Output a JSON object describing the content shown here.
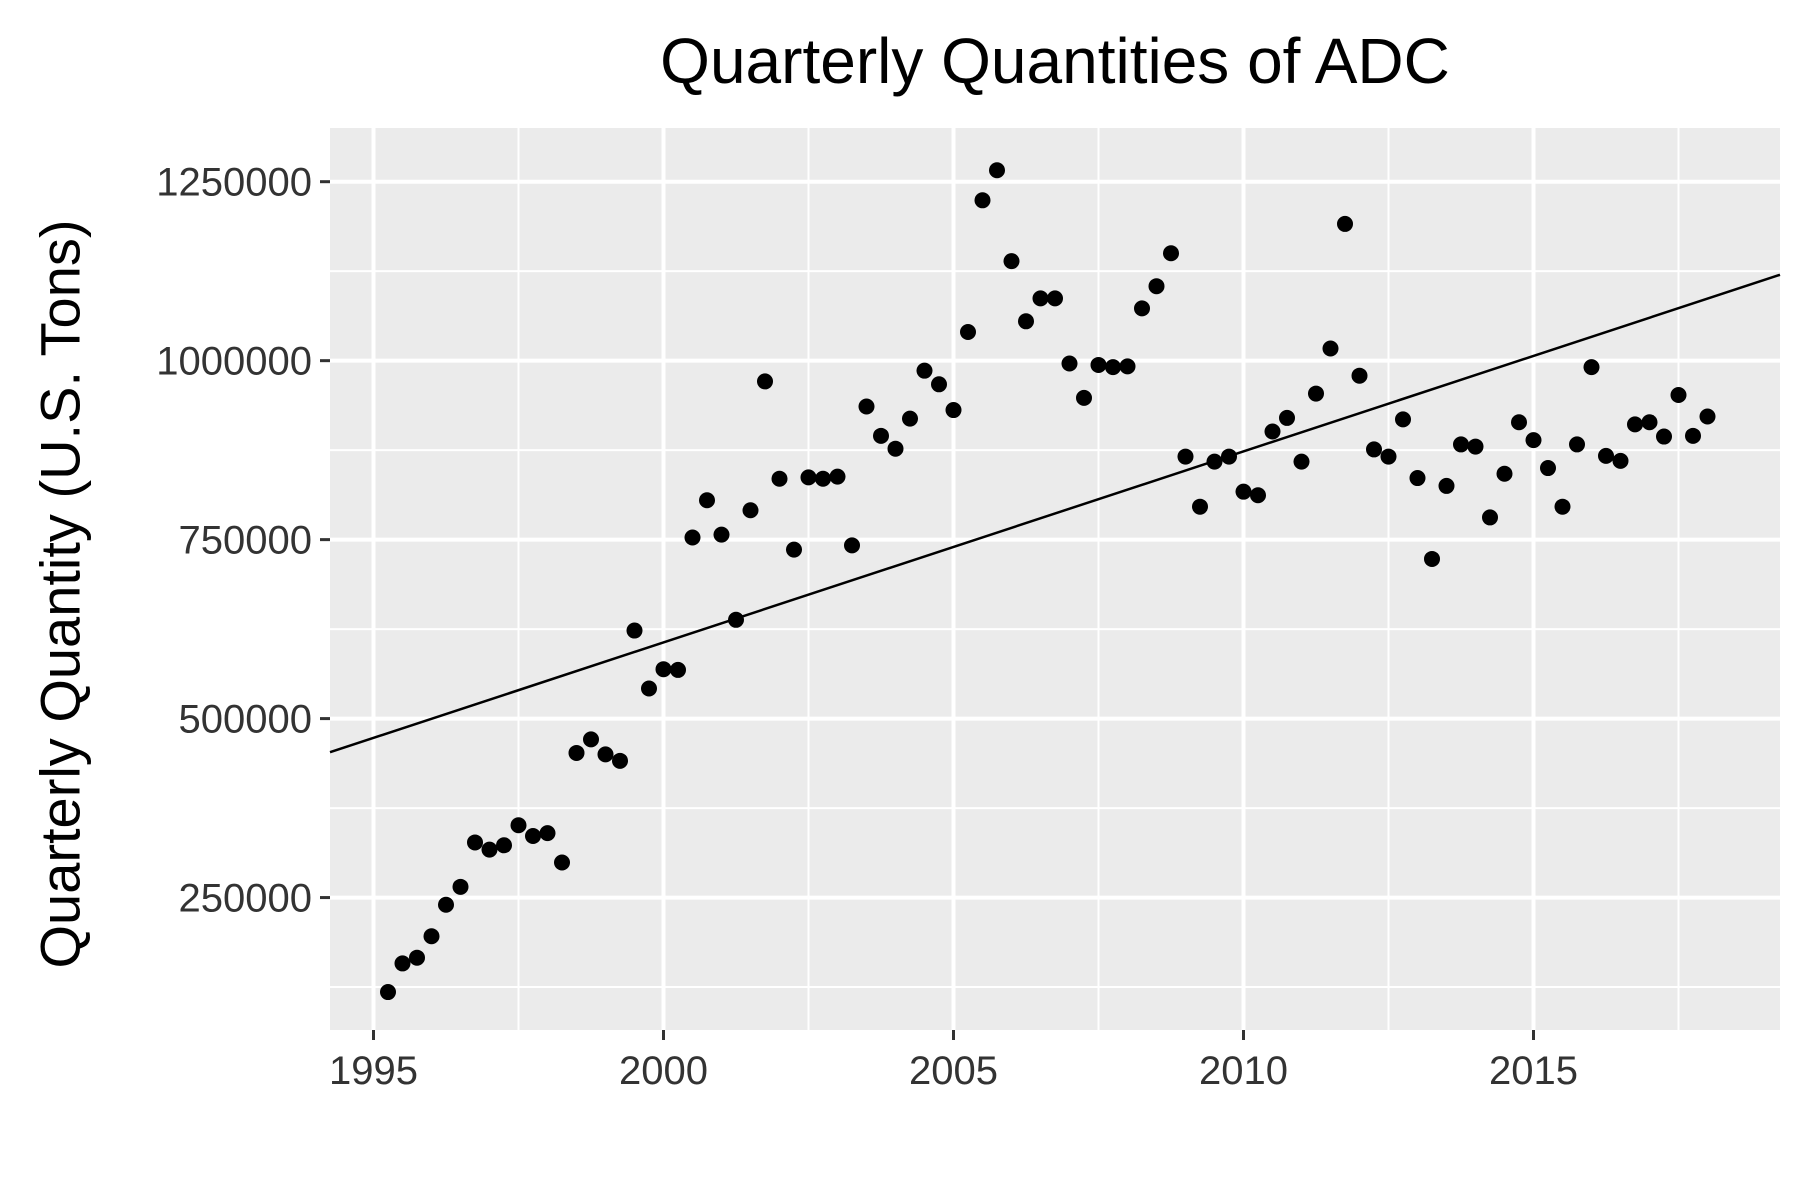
{
  "chart_data": {
    "type": "scatter",
    "title": "Quarterly Quantities of ADC",
    "xlabel": "",
    "ylabel": "Quarterly Quantity (U.S. Tons)",
    "xlim": [
      1994.25,
      2019.25
    ],
    "ylim": [
      65000,
      1325000
    ],
    "x_ticks": [
      1995,
      2000,
      2005,
      2010,
      2015
    ],
    "y_ticks": [
      250000,
      500000,
      750000,
      1000000,
      1250000
    ],
    "x_tick_labels": [
      "1995",
      "2000",
      "2005",
      "2010",
      "2015"
    ],
    "y_tick_labels": [
      "250000",
      "500000",
      "750000",
      "1000000",
      "1250000"
    ],
    "grid": true,
    "legend": "none",
    "background_color": "#ebebeb",
    "grid_color": "#ffffff",
    "point_color": "#000000",
    "trend_line": {
      "x": [
        1994.25,
        2019.25
      ],
      "y": [
        453000,
        1120000
      ]
    },
    "points": [
      [
        1995.25,
        118000
      ],
      [
        1995.5,
        158000
      ],
      [
        1995.75,
        166000
      ],
      [
        1996.0,
        196000
      ],
      [
        1996.25,
        240000
      ],
      [
        1996.5,
        265000
      ],
      [
        1996.75,
        327000
      ],
      [
        1997.0,
        317000
      ],
      [
        1997.25,
        323000
      ],
      [
        1997.5,
        351000
      ],
      [
        1997.75,
        336000
      ],
      [
        1998.0,
        340000
      ],
      [
        1998.25,
        299000
      ],
      [
        1998.5,
        452000
      ],
      [
        1998.75,
        471000
      ],
      [
        1999.0,
        450000
      ],
      [
        1999.25,
        441000
      ],
      [
        1999.5,
        623000
      ],
      [
        1999.75,
        542000
      ],
      [
        2000.0,
        569000
      ],
      [
        2000.25,
        568000
      ],
      [
        2000.5,
        753000
      ],
      [
        2000.75,
        805000
      ],
      [
        2001.0,
        757000
      ],
      [
        2001.25,
        638000
      ],
      [
        2001.5,
        791000
      ],
      [
        2001.75,
        971000
      ],
      [
        2002.0,
        835000
      ],
      [
        2002.25,
        736000
      ],
      [
        2002.5,
        837000
      ],
      [
        2002.75,
        835000
      ],
      [
        2003.0,
        838000
      ],
      [
        2003.25,
        742000
      ],
      [
        2003.5,
        936000
      ],
      [
        2003.75,
        895000
      ],
      [
        2004.0,
        877000
      ],
      [
        2004.25,
        919000
      ],
      [
        2004.5,
        986000
      ],
      [
        2004.75,
        967000
      ],
      [
        2005.0,
        931000
      ],
      [
        2005.25,
        1040000
      ],
      [
        2005.5,
        1224000
      ],
      [
        2005.75,
        1266000
      ],
      [
        2006.0,
        1139000
      ],
      [
        2006.25,
        1055000
      ],
      [
        2006.5,
        1087000
      ],
      [
        2006.75,
        1087000
      ],
      [
        2007.0,
        996000
      ],
      [
        2007.25,
        948000
      ],
      [
        2007.5,
        994000
      ],
      [
        2007.75,
        991000
      ],
      [
        2008.0,
        992000
      ],
      [
        2008.25,
        1073000
      ],
      [
        2008.5,
        1104000
      ],
      [
        2008.75,
        1150000
      ],
      [
        2009.0,
        866000
      ],
      [
        2009.25,
        796000
      ],
      [
        2009.5,
        859000
      ],
      [
        2009.75,
        866000
      ],
      [
        2010.0,
        817000
      ],
      [
        2010.25,
        812000
      ],
      [
        2010.5,
        901000
      ],
      [
        2010.75,
        920000
      ],
      [
        2011.0,
        859000
      ],
      [
        2011.25,
        954000
      ],
      [
        2011.5,
        1017000
      ],
      [
        2011.75,
        1191000
      ],
      [
        2012.0,
        979000
      ],
      [
        2012.25,
        876000
      ],
      [
        2012.5,
        866000
      ],
      [
        2012.75,
        918000
      ],
      [
        2013.0,
        836000
      ],
      [
        2013.25,
        723000
      ],
      [
        2013.5,
        825000
      ],
      [
        2013.75,
        883000
      ],
      [
        2014.0,
        880000
      ],
      [
        2014.25,
        781000
      ],
      [
        2014.5,
        842000
      ],
      [
        2014.75,
        914000
      ],
      [
        2015.0,
        889000
      ],
      [
        2015.25,
        850000
      ],
      [
        2015.5,
        796000
      ],
      [
        2015.75,
        883000
      ],
      [
        2016.0,
        991000
      ],
      [
        2016.25,
        867000
      ],
      [
        2016.5,
        860000
      ],
      [
        2016.75,
        911000
      ],
      [
        2017.0,
        914000
      ],
      [
        2017.25,
        894000
      ],
      [
        2017.5,
        952000
      ],
      [
        2017.75,
        895000
      ],
      [
        2018.0,
        922000
      ]
    ]
  }
}
